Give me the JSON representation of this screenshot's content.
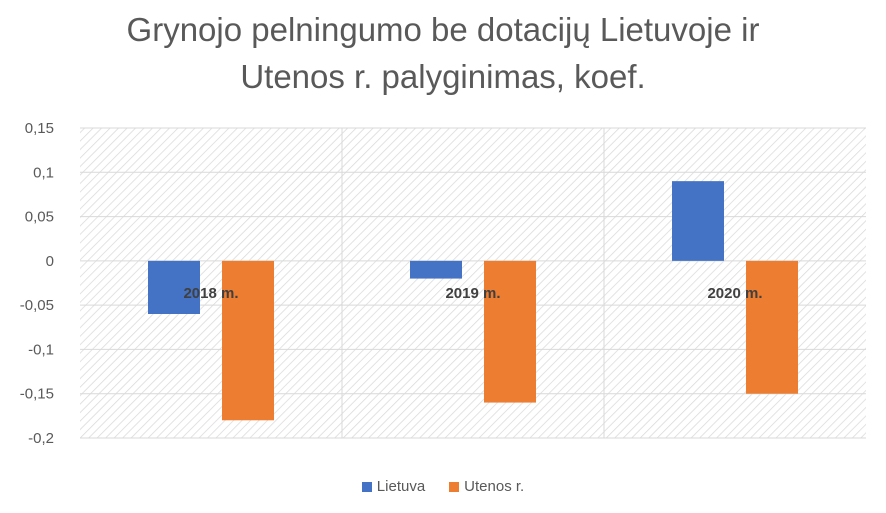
{
  "chart_data": {
    "type": "bar",
    "title_lines": [
      "Grynojo pelningumo be dotacijų Lietuvoje ir",
      "Utenos r. palyginimas, koef."
    ],
    "categories": [
      "2018 m.",
      "2019 m.",
      "2020 m."
    ],
    "series": [
      {
        "name": "Lietuva",
        "values": [
          -0.06,
          -0.02,
          0.09
        ],
        "color": "#4472C4"
      },
      {
        "name": "Utenos r.",
        "values": [
          -0.18,
          -0.16,
          -0.15
        ],
        "color": "#ED7D31"
      }
    ],
    "y_ticks": [
      "0,15",
      "0,1",
      "0,05",
      "0",
      "-0,05",
      "-0,1",
      "-0,15",
      "-0,2"
    ],
    "ylim": [
      -0.2,
      0.15
    ],
    "grid": true,
    "legend_position": "bottom"
  }
}
